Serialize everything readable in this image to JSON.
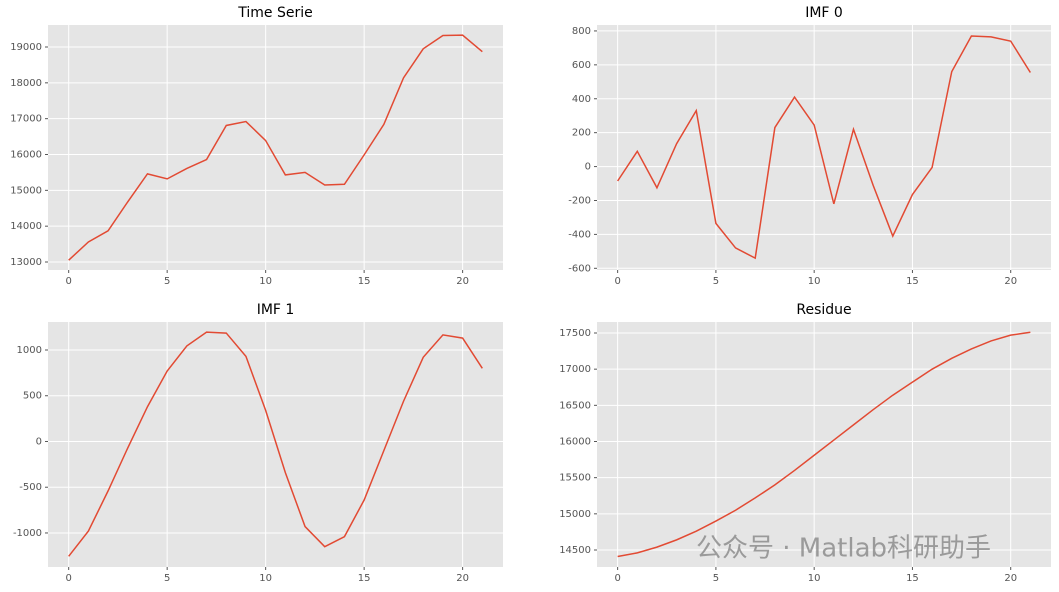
{
  "chart_data": [
    {
      "type": "line",
      "title": "Time Serie",
      "x": [
        0,
        1,
        2,
        3,
        4,
        5,
        6,
        7,
        8,
        9,
        10,
        11,
        12,
        13,
        14,
        15,
        16,
        17,
        18,
        19,
        20,
        21
      ],
      "values": [
        13050,
        13560,
        13870,
        14680,
        15460,
        15320,
        15610,
        15860,
        16810,
        16920,
        16390,
        15430,
        15500,
        15150,
        15170,
        15990,
        16840,
        18140,
        18950,
        19320,
        19330,
        18870
      ],
      "color": "#e24a33",
      "xlim": [
        -1.05,
        22.05
      ],
      "xticks": [
        0,
        5,
        10,
        15,
        20
      ],
      "ylim": [
        12777,
        19614
      ],
      "yticks": [
        13000,
        14000,
        15000,
        16000,
        17000,
        18000,
        19000
      ],
      "grid": true
    },
    {
      "type": "line",
      "title": "IMF 0",
      "x": [
        0,
        1,
        2,
        3,
        4,
        5,
        6,
        7,
        8,
        9,
        10,
        11,
        12,
        13,
        14,
        15,
        16,
        17,
        18,
        19,
        20,
        21
      ],
      "values": [
        -85,
        90,
        -125,
        135,
        330,
        -335,
        -480,
        -540,
        230,
        410,
        245,
        -220,
        220,
        -110,
        -410,
        -165,
        -5,
        560,
        770,
        765,
        740,
        555
      ],
      "color": "#e24a33",
      "xlim": [
        -1.05,
        22.05
      ],
      "xticks": [
        0,
        5,
        10,
        15,
        20
      ],
      "ylim": [
        -610,
        835
      ],
      "yticks": [
        -600,
        -400,
        -200,
        0,
        200,
        400,
        600,
        800
      ],
      "grid": true
    },
    {
      "type": "line",
      "title": "IMF 1",
      "x": [
        0,
        1,
        2,
        3,
        4,
        5,
        6,
        7,
        8,
        9,
        10,
        11,
        12,
        13,
        14,
        15,
        16,
        17,
        18,
        19,
        20,
        21
      ],
      "values": [
        -1255,
        -980,
        -540,
        -70,
        380,
        770,
        1045,
        1195,
        1185,
        930,
        340,
        -340,
        -930,
        -1150,
        -1040,
        -640,
        -100,
        440,
        920,
        1165,
        1130,
        800
      ],
      "color": "#e24a33",
      "xlim": [
        -1.05,
        22.05
      ],
      "xticks": [
        0,
        5,
        10,
        15,
        20
      ],
      "ylim": [
        -1372,
        1306
      ],
      "yticks": [
        -1000,
        -500,
        0,
        500,
        1000
      ],
      "grid": true
    },
    {
      "type": "line",
      "title": "Residue",
      "x": [
        0,
        1,
        2,
        3,
        4,
        5,
        6,
        7,
        8,
        9,
        10,
        11,
        12,
        13,
        14,
        15,
        16,
        17,
        18,
        19,
        20,
        21
      ],
      "values": [
        14410,
        14460,
        14540,
        14640,
        14760,
        14900,
        15050,
        15220,
        15400,
        15600,
        15810,
        16020,
        16230,
        16440,
        16640,
        16820,
        17000,
        17150,
        17280,
        17390,
        17470,
        17510
      ],
      "color": "#e24a33",
      "xlim": [
        -1.05,
        22.05
      ],
      "xticks": [
        0,
        5,
        10,
        15,
        20
      ],
      "ylim": [
        14265,
        17652
      ],
      "yticks": [
        14500,
        15000,
        15500,
        16000,
        16500,
        17000,
        17500
      ],
      "grid": true
    }
  ],
  "watermark": "公众号 · Matlab科研助手"
}
